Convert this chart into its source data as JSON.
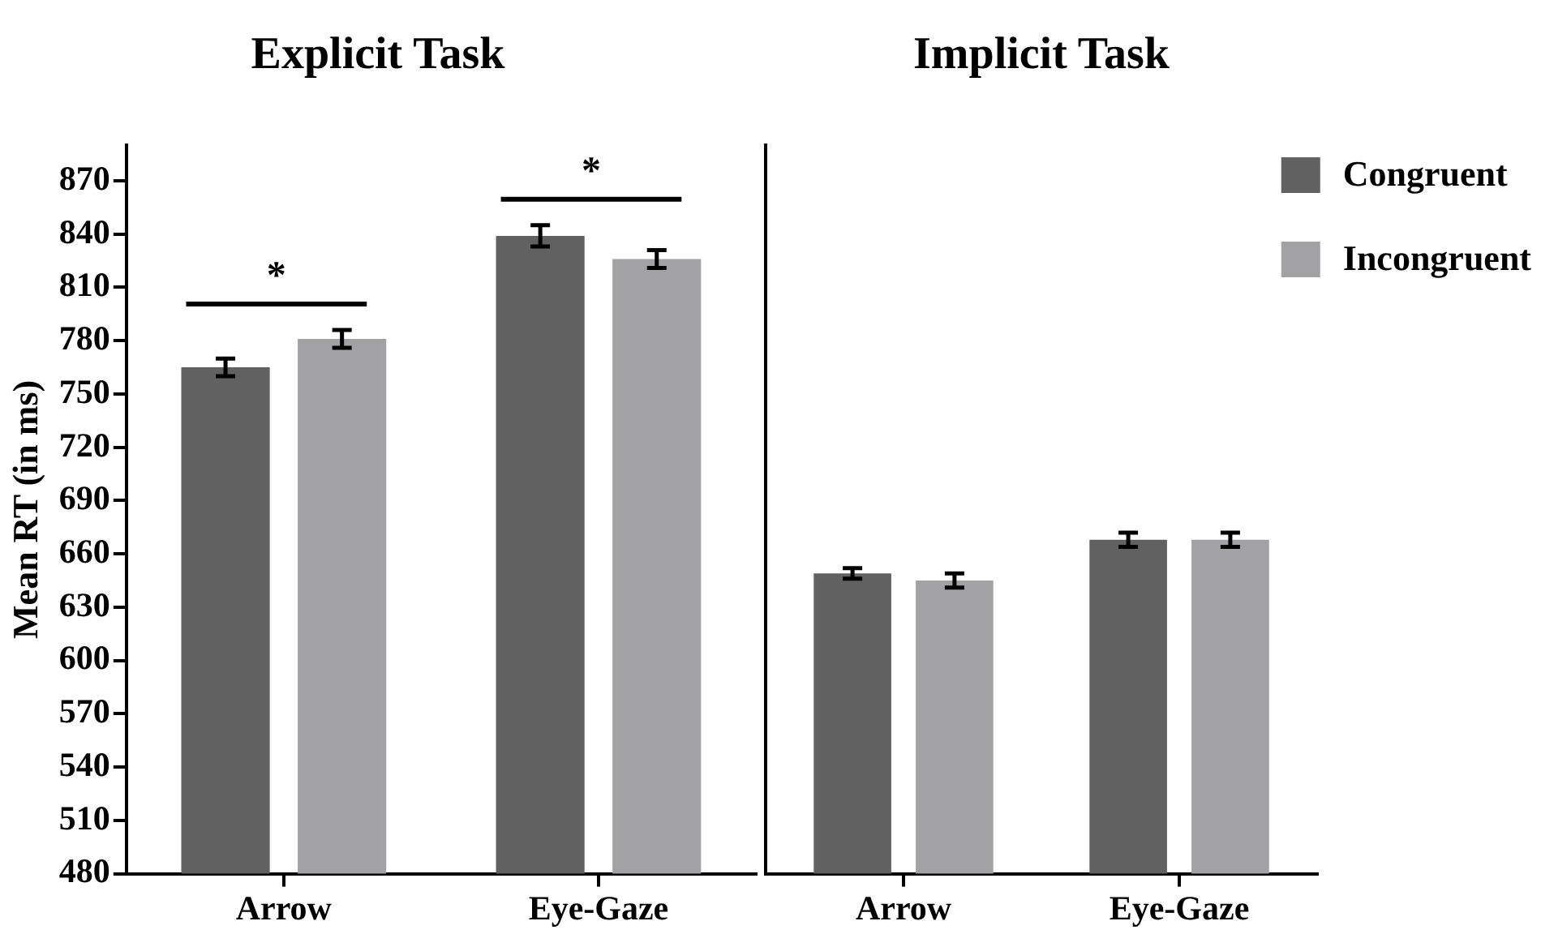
{
  "chart_data": [
    {
      "type": "bar",
      "title": "Explicit Task",
      "ylabel": "Mean RT (in ms)",
      "categories": [
        "Arrow",
        "Eye-Gaze"
      ],
      "series": [
        {
          "color": "#616161",
          "values": [
            765,
            839
          ],
          "errors": [
            5,
            6
          ]
        },
        {
          "color": "#a2a2a5",
          "values": [
            781,
            826
          ],
          "errors": [
            5,
            5
          ]
        }
      ],
      "ylim": [
        480,
        890
      ],
      "yticks": [
        480,
        510,
        540,
        570,
        600,
        630,
        660,
        690,
        720,
        750,
        780,
        810,
        840,
        870
      ],
      "annotations": [
        "*",
        "*"
      ]
    },
    {
      "type": "bar",
      "title": "Implicit Task",
      "categories": [
        "Arrow",
        "Eye-Gaze"
      ],
      "series": [
        {
          "name": "Congruent",
          "color": "#616161",
          "values": [
            649,
            668
          ],
          "errors": [
            3,
            4
          ]
        },
        {
          "name": "Incongruent",
          "color": "#a2a2a5",
          "values": [
            645,
            668
          ],
          "errors": [
            4,
            4
          ]
        }
      ],
      "ylim": [
        480,
        890
      ],
      "yticks": [
        480,
        510,
        540,
        570,
        600,
        630,
        660,
        690,
        720,
        750,
        780,
        810,
        840,
        870
      ],
      "tick_labels": "x",
      "legend": "top right"
    }
  ]
}
